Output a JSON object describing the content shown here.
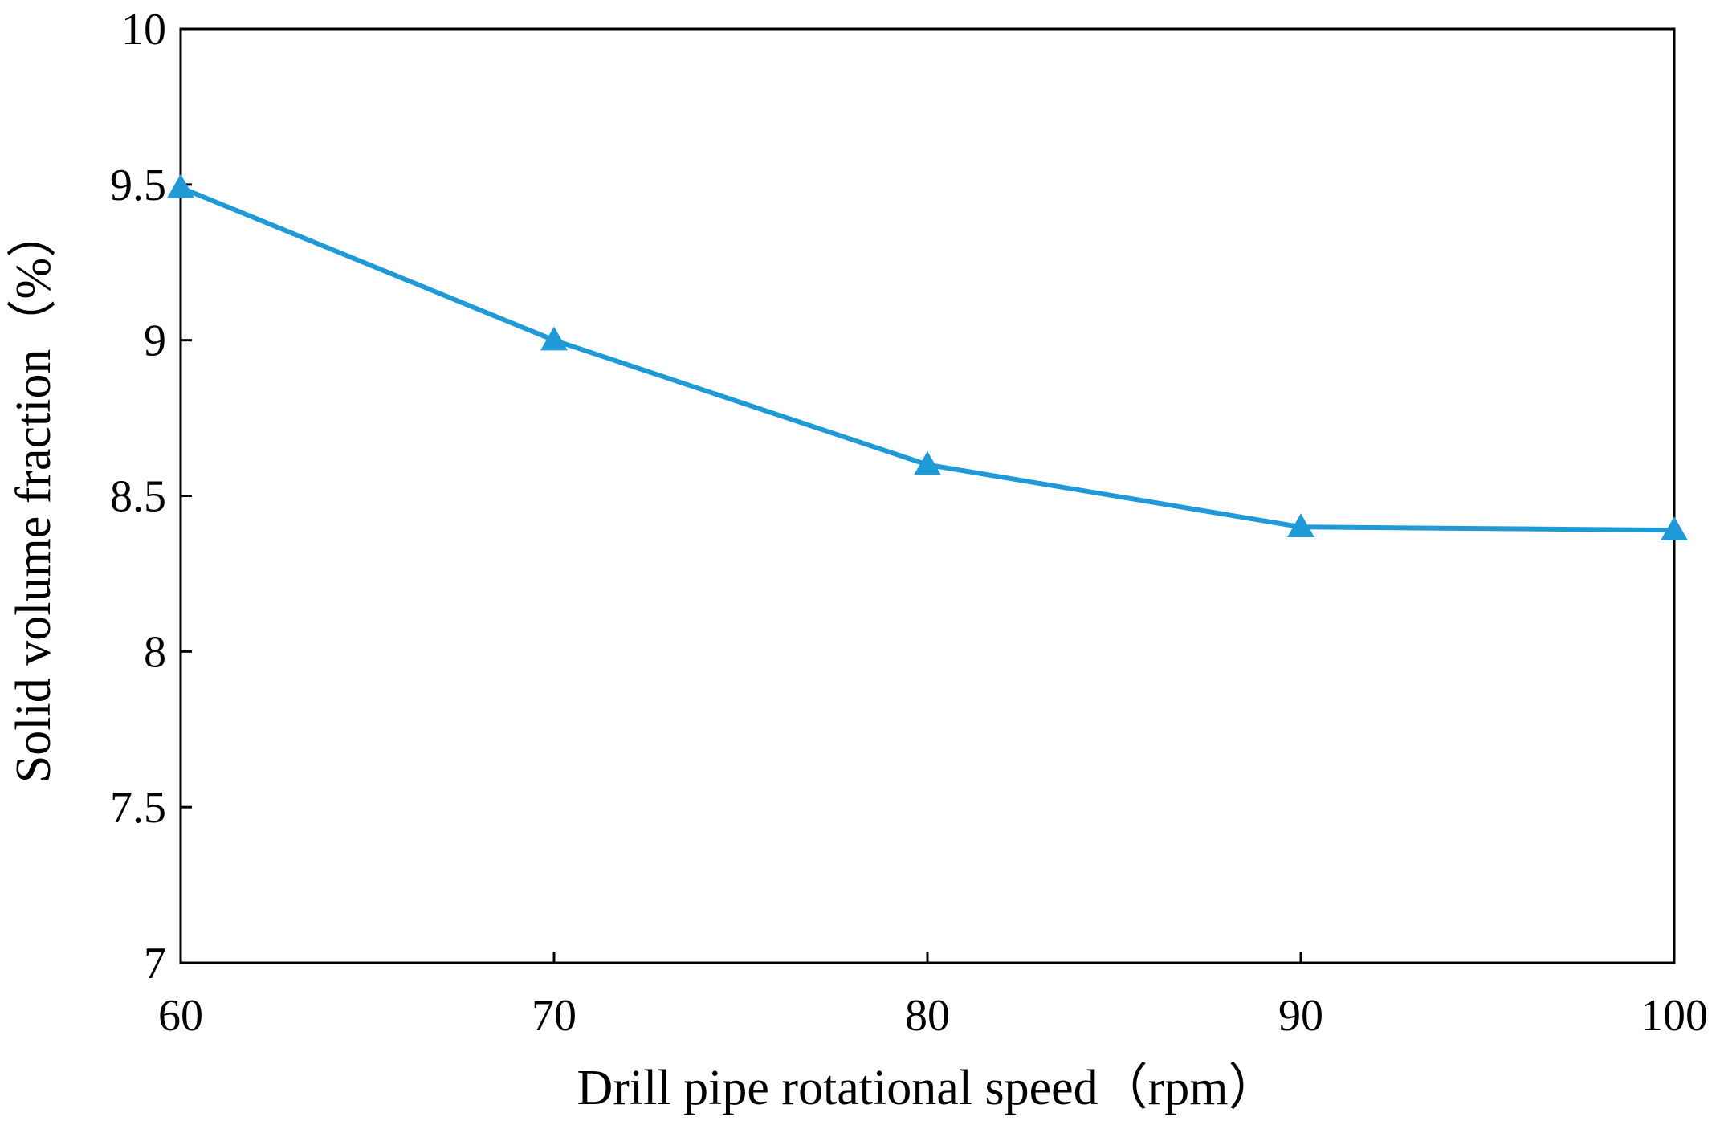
{
  "chart_data": {
    "type": "line",
    "title": "",
    "xlabel": "Drill pipe rotational speed（rpm）",
    "ylabel": "Solid volume fraction（%）",
    "x": [
      60,
      70,
      80,
      90,
      100
    ],
    "series": [
      {
        "name": "Solid volume fraction",
        "values": [
          9.49,
          9.0,
          8.6,
          8.4,
          8.39
        ],
        "color": "#1f9ad6",
        "marker": "triangle"
      }
    ],
    "xlim": [
      60,
      100
    ],
    "ylim": [
      7,
      10
    ],
    "xticks": [
      "60",
      "70",
      "80",
      "90",
      "100"
    ],
    "yticks": [
      "7",
      "7.5",
      "8",
      "8.5",
      "9",
      "9.5",
      "10"
    ],
    "grid": false,
    "legend": "none"
  }
}
